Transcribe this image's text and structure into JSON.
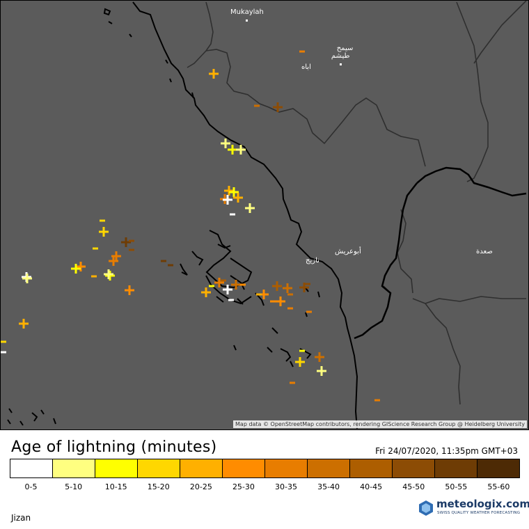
{
  "map": {
    "places": [
      {
        "id": "mukaylah",
        "label": "Mukaylah"
      },
      {
        "id": "samtah",
        "label": "سيمح\nطيشم"
      },
      {
        "id": "aba",
        "label": "اباه"
      },
      {
        "id": "jizan-city",
        "label": "نازيج"
      },
      {
        "id": "abu-arish",
        "label": "أبوعريش"
      },
      {
        "id": "sabya",
        "label": "صعدة"
      }
    ],
    "attribution": "Map data © OpenStreetMap contributors, rendering GIScience Research Group @ Heidelberg University",
    "strikes_by_age_class": {
      "description_classes": "age class index into legend (0 = 0-5 min ... 11 = 55-60 min)",
      "positive_strikes": 42,
      "negative_strikes": 30
    }
  },
  "legend": {
    "title": "Age of lightning (minutes)",
    "timestamp": "Fri 24/07/2020, 11:35pm GMT+03",
    "classes": [
      {
        "label": "0-5",
        "color": "#ffffff"
      },
      {
        "label": "5-10",
        "color": "#ffff80"
      },
      {
        "label": "10-15",
        "color": "#ffff00"
      },
      {
        "label": "15-20",
        "color": "#ffd700"
      },
      {
        "label": "20-25",
        "color": "#ffb000"
      },
      {
        "label": "25-30",
        "color": "#ff8c00"
      },
      {
        "label": "30-35",
        "color": "#e87d00"
      },
      {
        "label": "35-40",
        "color": "#cc6f00"
      },
      {
        "label": "40-45",
        "color": "#ad5e00"
      },
      {
        "label": "45-50",
        "color": "#8c4c05"
      },
      {
        "label": "50-55",
        "color": "#6e3c05"
      },
      {
        "label": "55-60",
        "color": "#4d2a05"
      }
    ]
  },
  "footer": {
    "location": "Jizan",
    "brand_name": "meteologix.com",
    "brand_tagline": "SWISS QUALITY WEATHER FORECASTING"
  }
}
